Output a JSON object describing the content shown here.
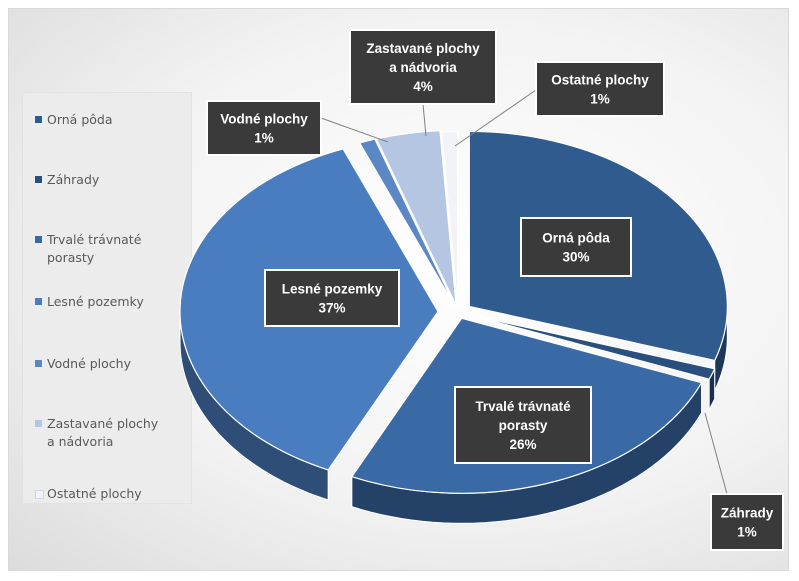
{
  "chart_data": {
    "type": "pie",
    "style": "3d-exploded",
    "legend_position": "left",
    "categories": [
      "Orná pôda",
      "Záhrady",
      "Trvalé trávnaté porasty",
      "Lesné pozemky",
      "Vodné plochy",
      "Zastavané plochy a nádvoria",
      "Ostatné plochy"
    ],
    "legend_labels": [
      "Orná pôda",
      "Záhrady",
      "Trvalé trávnaté\nporasty",
      "Lesné pozemky",
      "Vodné plochy",
      "Zastavané plochy\na nádvoria",
      "Ostatné plochy"
    ],
    "values": [
      30,
      1,
      26,
      37,
      1,
      4,
      1
    ],
    "unit": "%",
    "data_labels": [
      {
        "lines": [
          "Orná pôda",
          "30%"
        ]
      },
      {
        "lines": [
          "Záhrady",
          "1%"
        ]
      },
      {
        "lines": [
          "Trvalé trávnaté",
          "porasty",
          "26%"
        ]
      },
      {
        "lines": [
          "Lesné pozemky",
          "37%"
        ]
      },
      {
        "lines": [
          "Vodné plochy",
          "1%"
        ]
      },
      {
        "lines": [
          "Zastavané plochy",
          "a nádvoria",
          "4%"
        ]
      },
      {
        "lines": [
          "Ostatné plochy",
          "1%"
        ]
      }
    ],
    "colors": [
      "#2f5b8f",
      "#284f7d",
      "#3a6aa6",
      "#4a7cc0",
      "#5b87c5",
      "#b5c6e3",
      "#f1f3f7"
    ]
  }
}
